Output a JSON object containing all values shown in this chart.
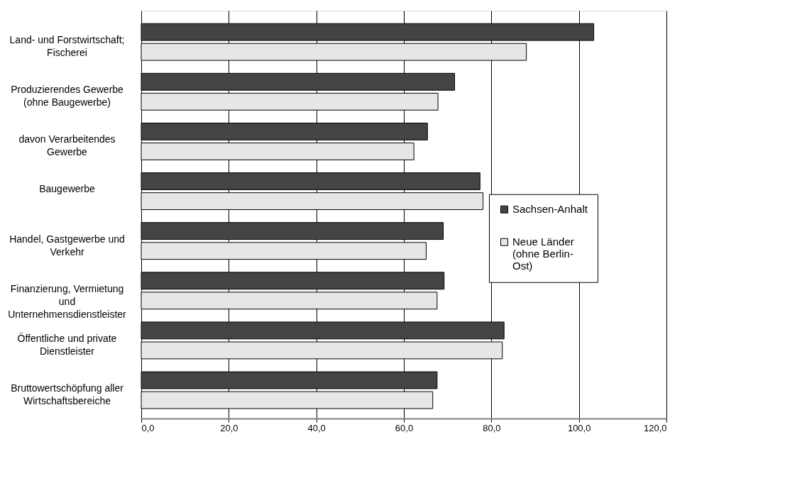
{
  "chart_data": {
    "type": "bar",
    "orientation": "horizontal",
    "categories": [
      "Land- und Forstwirtschaft; Fischerei",
      "Produzierendes Gewerbe (ohne Baugewerbe)",
      "davon Verarbeitendes Gewerbe",
      "Baugewerbe",
      "Handel, Gastgewerbe und Verkehr",
      "Finanzierung, Vermietung und Unternehmensdienstleister",
      "Öffentliche und private Dienstleister",
      "Bruttowertschöpfung aller Wirtschaftsbereiche"
    ],
    "series": [
      {
        "name": "Sachsen-Anhalt",
        "color": "#444444",
        "values": [
          103.4,
          71.6,
          65.4,
          77.4,
          69.0,
          69.2,
          82.9,
          67.6
        ]
      },
      {
        "name": "Neue Länder (ohne Berlin-Ost)",
        "color": "#e6e6e6",
        "values": [
          88.0,
          67.8,
          62.3,
          78.1,
          65.1,
          67.6,
          82.5,
          66.6
        ]
      }
    ],
    "xlim": [
      0,
      120
    ],
    "xticks": [
      {
        "value": 0,
        "label": "0,0"
      },
      {
        "value": 20,
        "label": "20,0"
      },
      {
        "value": 40,
        "label": "40,0"
      },
      {
        "value": 60,
        "label": "60,0"
      },
      {
        "value": 80,
        "label": "80,0"
      },
      {
        "value": 100,
        "label": "100,0"
      },
      {
        "value": 120,
        "label": "120,0"
      }
    ],
    "grid": "x",
    "legend": "right"
  }
}
